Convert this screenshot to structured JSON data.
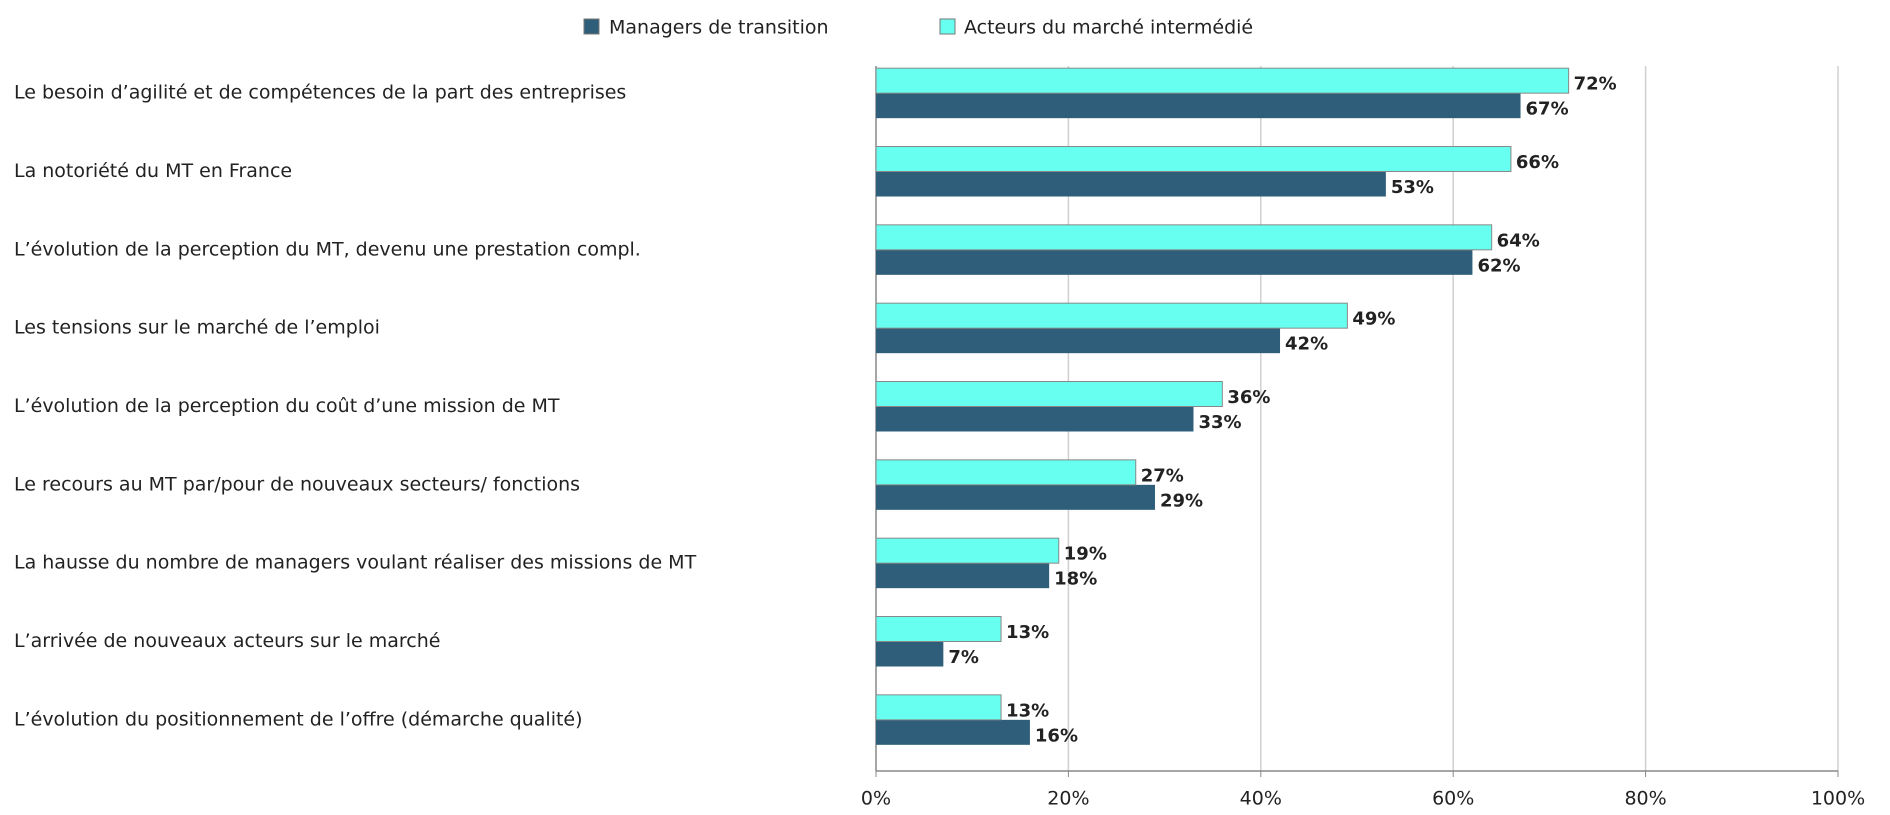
{
  "chart_data": {
    "type": "bar",
    "orientation": "horizontal",
    "categories": [
      "Le besoin d’agilité et de compétences de la part des entreprises",
      "La notoriété du MT en France",
      "L’évolution de la perception du MT, devenu une prestation compl.",
      "Les tensions sur le marché de l’emploi",
      "L’évolution de la perception du coût d’une mission de MT",
      "Le recours au MT par/pour de nouveaux secteurs/ fonctions",
      "La hausse du nombre de managers voulant réaliser des missions de MT",
      "L’arrivée de nouveaux acteurs sur le marché",
      "L’évolution du positionnement de l’offre (démarche qualité)"
    ],
    "series": [
      {
        "name": "Managers de transition",
        "color": "#2e5e79",
        "values": [
          67,
          53,
          62,
          42,
          33,
          29,
          18,
          7,
          16
        ],
        "value_labels": [
          "67%",
          "53%",
          "62%",
          "42%",
          "33%",
          "29%",
          "18%",
          "7%",
          "16%"
        ]
      },
      {
        "name": "Acteurs du marché intermédié",
        "color": "#66fff0",
        "values": [
          72,
          66,
          64,
          49,
          36,
          27,
          19,
          13,
          13
        ],
        "value_labels": [
          "72%",
          "66%",
          "64%",
          "49%",
          "36%",
          "27%",
          "19%",
          "13%",
          "13%"
        ]
      }
    ],
    "xlim": [
      0,
      100
    ],
    "xticks": [
      {
        "value": 0,
        "label": "0%"
      },
      {
        "value": 20,
        "label": "20%"
      },
      {
        "value": 40,
        "label": "40%"
      },
      {
        "value": 60,
        "label": "60%"
      },
      {
        "value": 80,
        "label": "80%"
      },
      {
        "value": 100,
        "label": "100%"
      }
    ],
    "grid": true,
    "legend": "top"
  }
}
